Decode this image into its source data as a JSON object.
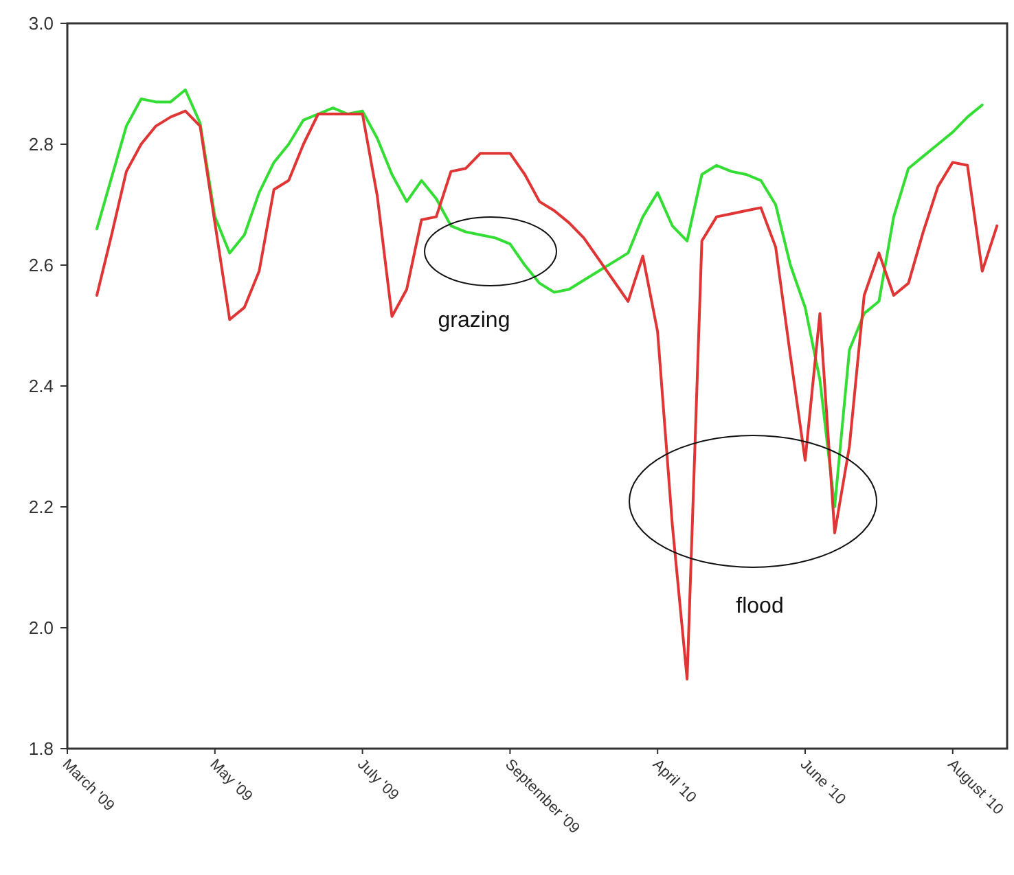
{
  "chart_data": {
    "type": "line",
    "categories": [
      "March '09",
      null,
      null,
      null,
      null,
      null,
      null,
      null,
      null,
      null,
      "May '09",
      null,
      null,
      null,
      null,
      null,
      null,
      null,
      null,
      null,
      "July '09",
      null,
      null,
      null,
      null,
      null,
      null,
      null,
      null,
      null,
      "September '09",
      null,
      null,
      null,
      null,
      null,
      null,
      null,
      null,
      null,
      "April '10",
      null,
      null,
      null,
      null,
      null,
      null,
      null,
      null,
      null,
      "June '10",
      null,
      null,
      null,
      null,
      null,
      null,
      null,
      null,
      null,
      "August '10",
      null,
      null,
      null
    ],
    "ylim": [
      1.8,
      3.0
    ],
    "yticks": [
      1.8,
      {
        "value": 2,
        "label": "2.0"
      },
      2.2,
      2.4,
      2.6,
      2.8,
      {
        "value": 3,
        "label": "3.0"
      }
    ],
    "grid": false,
    "marker": "none",
    "line_style": "solid",
    "series": [
      {
        "color": "#33dd33",
        "values": [
          null,
          null,
          2.66,
          2.745,
          2.83,
          2.875,
          2.87,
          2.87,
          2.89,
          2.835,
          2.68,
          2.62,
          2.65,
          2.72,
          2.77,
          2.8,
          2.84,
          2.85,
          2.86,
          2.85,
          2.855,
          2.81,
          2.75,
          2.705,
          2.74,
          2.71,
          2.665,
          2.655,
          2.65,
          2.645,
          2.635,
          2.6,
          2.57,
          2.555,
          2.56,
          2.575,
          2.59,
          2.605,
          2.62,
          2.68,
          2.72,
          2.665,
          2.64,
          2.75,
          2.765,
          2.755,
          2.75,
          2.74,
          2.7,
          2.6,
          2.53,
          2.41,
          2.2,
          2.46,
          2.52,
          2.54,
          2.68,
          2.76,
          2.78,
          2.8,
          2.82,
          2.845,
          2.865,
          null
        ]
      },
      {
        "color": "#e03535",
        "values": [
          null,
          null,
          2.55,
          2.65,
          2.755,
          2.8,
          2.83,
          2.845,
          2.855,
          2.83,
          2.67,
          2.51,
          2.53,
          2.59,
          2.725,
          2.74,
          2.8,
          2.85,
          2.85,
          2.85,
          2.85,
          2.715,
          2.515,
          2.56,
          2.675,
          2.68,
          2.755,
          2.76,
          2.785,
          2.785,
          2.785,
          2.75,
          2.705,
          2.69,
          2.67,
          2.645,
          2.61,
          2.575,
          2.54,
          2.615,
          2.49,
          2.17,
          1.915,
          2.64,
          2.68,
          2.685,
          2.69,
          2.695,
          2.63,
          2.45,
          2.277,
          2.52,
          2.157,
          2.3,
          2.55,
          2.62,
          2.55,
          2.57,
          2.655,
          2.73,
          2.77,
          2.765,
          2.59,
          2.665
        ]
      }
    ],
    "annotations": [
      "grazing",
      "flood"
    ]
  }
}
